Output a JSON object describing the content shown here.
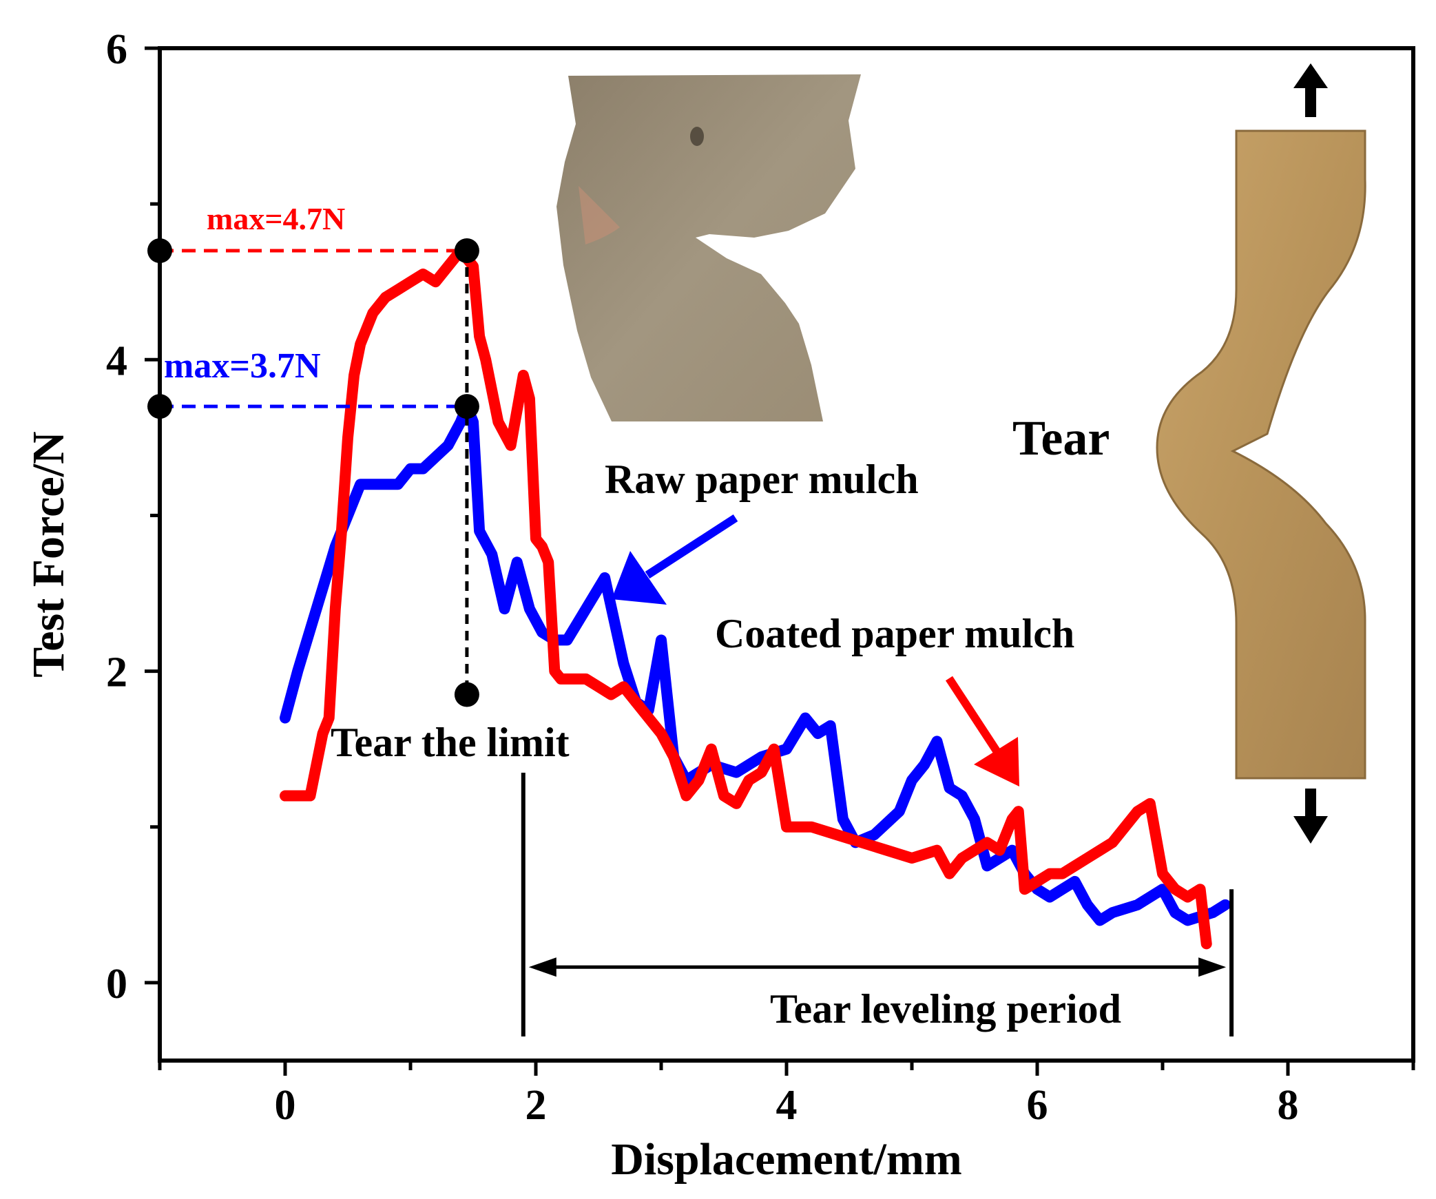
{
  "chart_data": {
    "type": "line",
    "xlabel": "Displacement/mm",
    "ylabel": "Test Force/N",
    "xlim": [
      -1,
      9
    ],
    "ylim": [
      -0.5,
      6
    ],
    "xticks": [
      "0",
      "2",
      "4",
      "6",
      "8"
    ],
    "yticks": [
      "0",
      "2",
      "4",
      "6"
    ],
    "grid": false,
    "series": [
      {
        "name": "Raw paper mulch",
        "color": "#0000ff",
        "x": [
          0,
          0.1,
          0.25,
          0.4,
          0.5,
          0.6,
          0.7,
          0.9,
          1.0,
          1.1,
          1.3,
          1.4,
          1.45,
          1.5,
          1.55,
          1.65,
          1.75,
          1.85,
          1.95,
          2.05,
          2.15,
          2.25,
          2.4,
          2.55,
          2.7,
          2.8,
          2.9,
          3.0,
          3.1,
          3.2,
          3.4,
          3.6,
          3.8,
          4.0,
          4.15,
          4.25,
          4.35,
          4.45,
          4.55,
          4.7,
          4.9,
          5.0,
          5.1,
          5.2,
          5.3,
          5.4,
          5.5,
          5.6,
          5.7,
          5.8,
          5.9,
          6.0,
          6.1,
          6.2,
          6.3,
          6.4,
          6.5,
          6.6,
          6.8,
          7.0,
          7.1,
          7.2,
          7.4,
          7.5
        ],
        "y": [
          1.7,
          2.0,
          2.4,
          2.8,
          3.0,
          3.2,
          3.2,
          3.2,
          3.3,
          3.3,
          3.45,
          3.6,
          3.7,
          3.6,
          2.9,
          2.75,
          2.4,
          2.7,
          2.4,
          2.25,
          2.2,
          2.2,
          2.4,
          2.6,
          2.05,
          1.8,
          1.75,
          2.2,
          1.45,
          1.3,
          1.4,
          1.35,
          1.45,
          1.5,
          1.7,
          1.6,
          1.65,
          1.05,
          0.9,
          0.95,
          1.1,
          1.3,
          1.4,
          1.55,
          1.25,
          1.2,
          1.05,
          0.75,
          0.8,
          0.85,
          0.7,
          0.6,
          0.55,
          0.6,
          0.65,
          0.5,
          0.4,
          0.45,
          0.5,
          0.6,
          0.45,
          0.4,
          0.45,
          0.5
        ]
      },
      {
        "name": "Coated paper mulch",
        "color": "#ff0000",
        "x": [
          0,
          0.1,
          0.2,
          0.3,
          0.35,
          0.4,
          0.45,
          0.5,
          0.55,
          0.6,
          0.7,
          0.8,
          0.9,
          1.0,
          1.1,
          1.2,
          1.3,
          1.4,
          1.5,
          1.55,
          1.6,
          1.7,
          1.8,
          1.9,
          1.95,
          2.0,
          2.05,
          2.1,
          2.15,
          2.2,
          2.3,
          2.4,
          2.5,
          2.6,
          2.7,
          2.8,
          2.9,
          3.0,
          3.1,
          3.2,
          3.3,
          3.4,
          3.5,
          3.6,
          3.7,
          3.8,
          3.9,
          4.0,
          4.2,
          4.4,
          4.6,
          4.8,
          5.0,
          5.2,
          5.3,
          5.4,
          5.5,
          5.6,
          5.7,
          5.8,
          5.85,
          5.9,
          6.0,
          6.1,
          6.2,
          6.3,
          6.4,
          6.5,
          6.6,
          6.7,
          6.8,
          6.9,
          7.0,
          7.1,
          7.2,
          7.3,
          7.35
        ],
        "y": [
          1.2,
          1.2,
          1.2,
          1.6,
          1.7,
          2.4,
          2.9,
          3.5,
          3.9,
          4.1,
          4.3,
          4.4,
          4.45,
          4.5,
          4.55,
          4.5,
          4.6,
          4.7,
          4.6,
          4.15,
          4.0,
          3.6,
          3.45,
          3.9,
          3.75,
          2.85,
          2.8,
          2.7,
          2.0,
          1.95,
          1.95,
          1.95,
          1.9,
          1.85,
          1.9,
          1.8,
          1.7,
          1.6,
          1.45,
          1.2,
          1.3,
          1.5,
          1.2,
          1.15,
          1.3,
          1.35,
          1.5,
          1.0,
          1.0,
          0.95,
          0.9,
          0.85,
          0.8,
          0.85,
          0.7,
          0.8,
          0.85,
          0.9,
          0.85,
          1.05,
          1.1,
          0.6,
          0.65,
          0.7,
          0.7,
          0.75,
          0.8,
          0.85,
          0.9,
          1.0,
          1.1,
          1.15,
          0.7,
          0.6,
          0.55,
          0.6,
          0.25
        ]
      }
    ],
    "annotations": {
      "max_coated": "max=4.7N",
      "max_raw": "max=3.7N",
      "label_raw": "Raw paper mulch",
      "label_coated": "Coated paper mulch",
      "tear_limit": "Tear the limit",
      "tear_leveling": "Tear leveling period",
      "tear": "Tear"
    },
    "markers": {
      "max_coated_y": 4.7,
      "max_raw_y": 3.7,
      "peak_x": 1.45,
      "limit_marker_y": 1.85,
      "leveling_start_x": 1.9,
      "leveling_end_x": 7.55
    }
  }
}
